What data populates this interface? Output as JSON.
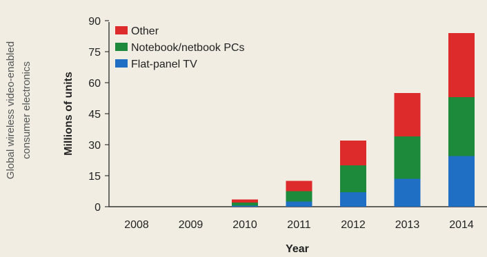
{
  "figure": {
    "side_title_line1": "Global wireless video-enabled",
    "side_title_line2": "consumer electronics"
  },
  "chart_data": {
    "type": "bar",
    "stacked": true,
    "categories": [
      "2008",
      "2009",
      "2010",
      "2011",
      "2012",
      "2013",
      "2014"
    ],
    "series": [
      {
        "name": "Flat-panel TV",
        "color": "#1f6fc4",
        "values": [
          0,
          0,
          0.5,
          2.5,
          7,
          13.5,
          24.5
        ]
      },
      {
        "name": "Notebook/netbook PCs",
        "color": "#1c8a3a",
        "values": [
          0,
          0,
          1.5,
          5,
          13,
          20.5,
          28.5
        ]
      },
      {
        "name": "Other",
        "color": "#dd2b2b",
        "values": [
          0,
          0,
          1.5,
          5,
          12,
          21,
          31
        ]
      }
    ],
    "legend_order": [
      "Other",
      "Notebook/netbook PCs",
      "Flat-panel TV"
    ],
    "xlabel": "Year",
    "ylabel": "Millions of units",
    "ylim": [
      0,
      90
    ],
    "yticks": [
      "0",
      "15",
      "30",
      "45",
      "60",
      "75",
      "90"
    ],
    "grid": false,
    "legend_position": "top-left"
  }
}
